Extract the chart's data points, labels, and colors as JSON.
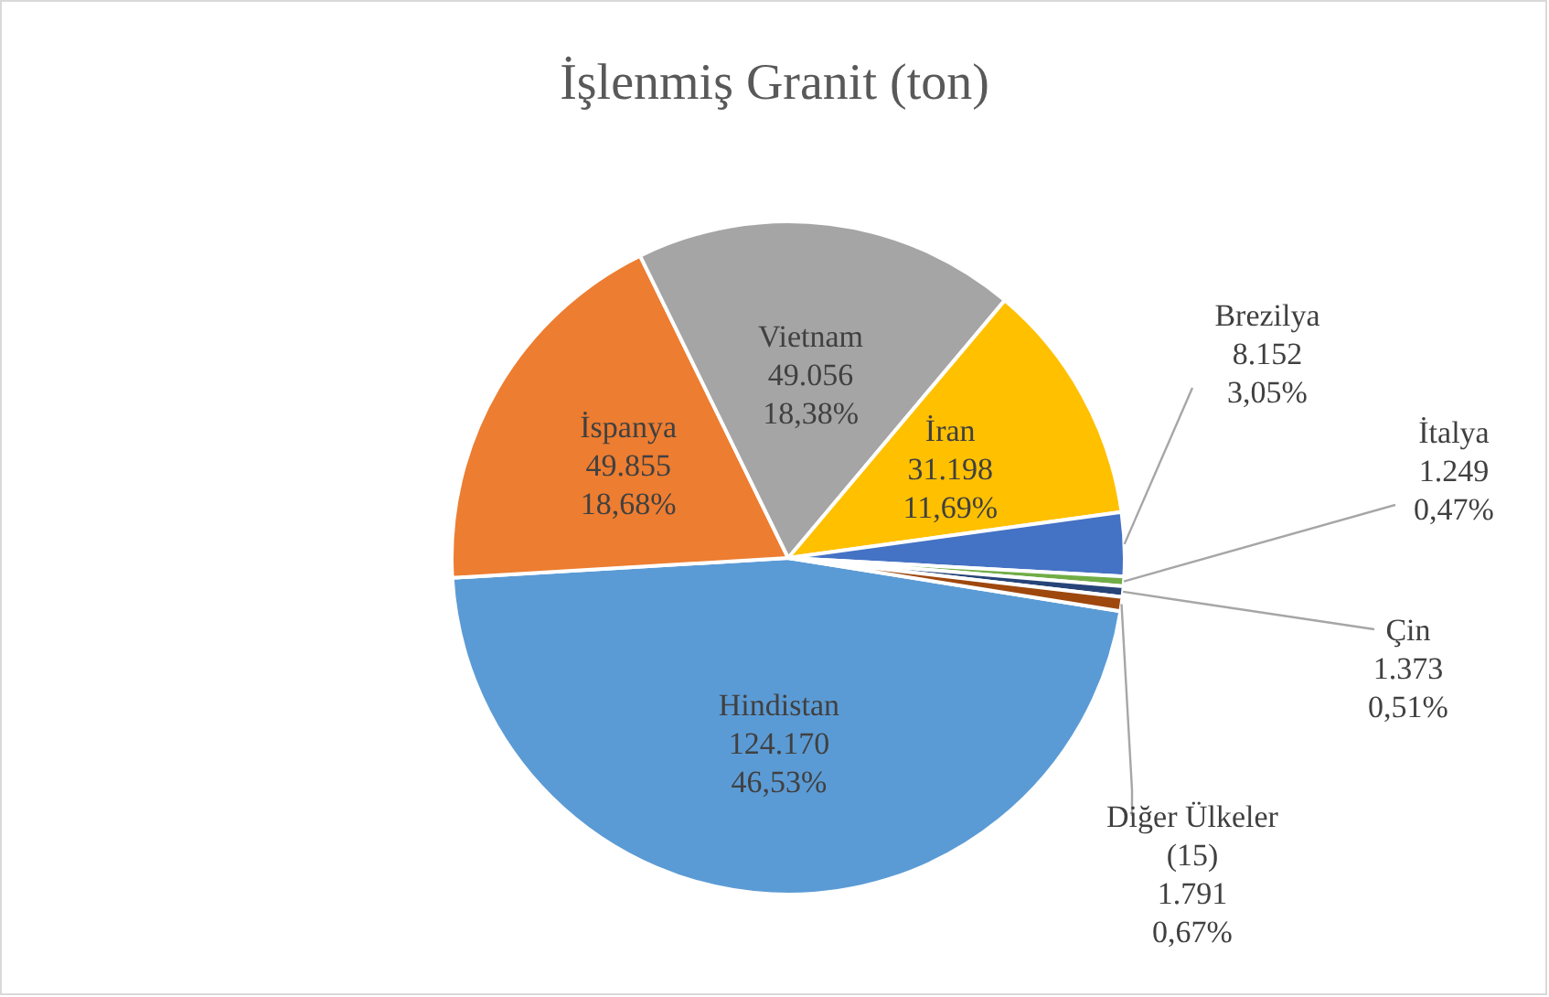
{
  "chart_data": {
    "type": "pie",
    "title": "İşlenmiş Granit (ton)",
    "categories": [
      "Hindistan",
      "İspanya",
      "Vietnam",
      "İran",
      "Brezilya",
      "İtalya",
      "Çin",
      "Diğer Ülkeler (15)"
    ],
    "values": [
      124170,
      49855,
      49056,
      31198,
      8152,
      1249,
      1373,
      1791
    ],
    "colors": [
      "#5b9bd5",
      "#ed7d31",
      "#a5a5a5",
      "#ffc000",
      "#4472c4",
      "#70ad47",
      "#264478",
      "#9e480e"
    ],
    "value_labels": [
      "124.170\n46,53%",
      "49.855\n18,68%",
      "49.056\n18,38%",
      "31.198\n11,69%",
      "8.152\n3,05%",
      "1.249\n0,47%",
      "1.373\n0,51%",
      "1.791\n0,67%"
    ],
    "legend": false
  }
}
